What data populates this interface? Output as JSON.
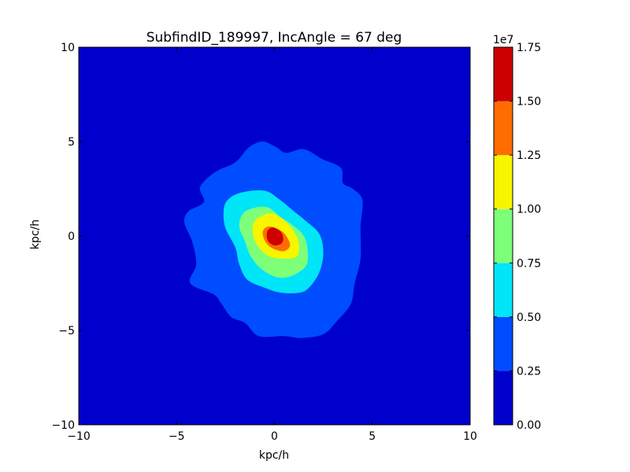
{
  "chart_data": {
    "type": "heatmap",
    "subtype": "filled-contour",
    "title": "SubfindID_189997, IncAngle = 67 deg",
    "xlabel": "kpc/h",
    "ylabel": "kpc/h",
    "xlim": [
      -10,
      10
    ],
    "ylim": [
      -10,
      10
    ],
    "xticks": [
      {
        "value": -10,
        "label": "−10"
      },
      {
        "value": -5,
        "label": "−5"
      },
      {
        "value": 0,
        "label": "0"
      },
      {
        "value": 5,
        "label": "5"
      },
      {
        "value": 10,
        "label": "10"
      }
    ],
    "yticks": [
      {
        "value": -10,
        "label": "−10"
      },
      {
        "value": -5,
        "label": "−5"
      },
      {
        "value": 0,
        "label": "0"
      },
      {
        "value": 5,
        "label": "5"
      },
      {
        "value": 10,
        "label": "10"
      }
    ],
    "grid": false,
    "colorbar": {
      "offset_label": "1e7",
      "ticks": [
        "0.00",
        "0.25",
        "0.50",
        "0.75",
        "1.00",
        "1.25",
        "1.50",
        "1.75"
      ],
      "levels": [
        0,
        0.25,
        0.5,
        0.75,
        1.0,
        1.25,
        1.5,
        1.75
      ],
      "colors": [
        "#0000cd",
        "#004cff",
        "#00e5f8",
        "#7dff7a",
        "#f8f500",
        "#ff6c00",
        "#cd0000"
      ]
    },
    "contours": [
      {
        "level_index": 1,
        "points": [
          [
            -2.0,
            3.9
          ],
          [
            -1.3,
            4.7
          ],
          [
            -0.6,
            5.0
          ],
          [
            0.1,
            4.7
          ],
          [
            0.6,
            4.4
          ],
          [
            1.5,
            4.6
          ],
          [
            2.4,
            4.1
          ],
          [
            3.4,
            3.6
          ],
          [
            3.5,
            2.8
          ],
          [
            4.0,
            2.5
          ],
          [
            4.5,
            1.9
          ],
          [
            4.4,
            0.5
          ],
          [
            4.4,
            -1.2
          ],
          [
            4.1,
            -2.5
          ],
          [
            3.9,
            -3.6
          ],
          [
            3.2,
            -4.5
          ],
          [
            2.5,
            -5.2
          ],
          [
            1.4,
            -5.4
          ],
          [
            0.5,
            -5.3
          ],
          [
            -0.8,
            -5.3
          ],
          [
            -1.5,
            -4.6
          ],
          [
            -2.2,
            -4.3
          ],
          [
            -2.7,
            -3.6
          ],
          [
            -3.1,
            -3.1
          ],
          [
            -4.3,
            -2.5
          ],
          [
            -4.0,
            -1.5
          ],
          [
            -4.2,
            -0.3
          ],
          [
            -4.6,
            0.7
          ],
          [
            -4.4,
            1.3
          ],
          [
            -3.6,
            1.8
          ],
          [
            -3.8,
            2.6
          ],
          [
            -3.0,
            3.4
          ]
        ]
      },
      {
        "level_index": 2,
        "points": [
          [
            -1.7,
            2.3
          ],
          [
            -0.5,
            2.4
          ],
          [
            0.3,
            1.9
          ],
          [
            1.0,
            1.3
          ],
          [
            1.6,
            0.8
          ],
          [
            2.3,
            0.1
          ],
          [
            2.5,
            -0.9
          ],
          [
            2.3,
            -1.9
          ],
          [
            1.8,
            -2.7
          ],
          [
            1.3,
            -3.0
          ],
          [
            0.3,
            -3.0
          ],
          [
            -0.6,
            -2.7
          ],
          [
            -1.4,
            -2.3
          ],
          [
            -1.8,
            -1.5
          ],
          [
            -2.0,
            -0.6
          ],
          [
            -2.5,
            0.4
          ],
          [
            -2.6,
            1.3
          ],
          [
            -2.4,
            1.9
          ]
        ]
      },
      {
        "level_index": 3,
        "points": [
          [
            -1.0,
            1.5
          ],
          [
            -0.3,
            1.5
          ],
          [
            0.3,
            1.0
          ],
          [
            0.9,
            0.6
          ],
          [
            1.5,
            0.0
          ],
          [
            1.7,
            -0.8
          ],
          [
            1.6,
            -1.6
          ],
          [
            0.9,
            -2.1
          ],
          [
            0.2,
            -2.2
          ],
          [
            -0.6,
            -1.8
          ],
          [
            -1.2,
            -1.1
          ],
          [
            -1.5,
            -0.3
          ],
          [
            -1.8,
            0.5
          ],
          [
            -1.6,
            1.2
          ]
        ]
      },
      {
        "level_index": 4,
        "points": [
          [
            -0.3,
            1.2
          ],
          [
            0.3,
            1.0
          ],
          [
            0.8,
            0.5
          ],
          [
            1.2,
            -0.2
          ],
          [
            1.2,
            -1.0
          ],
          [
            0.7,
            -1.2
          ],
          [
            -0.2,
            -1.1
          ],
          [
            -0.8,
            -0.6
          ],
          [
            -1.1,
            0.1
          ],
          [
            -1.0,
            0.8
          ]
        ]
      },
      {
        "level_index": 5,
        "points": [
          [
            -0.2,
            0.5
          ],
          [
            0.3,
            0.3
          ],
          [
            0.6,
            0.0
          ],
          [
            0.8,
            -0.5
          ],
          [
            0.5,
            -0.8
          ],
          [
            0.0,
            -0.7
          ],
          [
            -0.4,
            -0.4
          ],
          [
            -0.6,
            0.1
          ],
          [
            -0.5,
            0.4
          ]
        ]
      },
      {
        "level_index": 6,
        "points": [
          [
            -0.05,
            0.45
          ],
          [
            0.3,
            0.25
          ],
          [
            0.45,
            -0.1
          ],
          [
            0.35,
            -0.4
          ],
          [
            0.0,
            -0.5
          ],
          [
            -0.3,
            -0.3
          ],
          [
            -0.4,
            0.05
          ],
          [
            -0.3,
            0.35
          ]
        ]
      }
    ]
  }
}
